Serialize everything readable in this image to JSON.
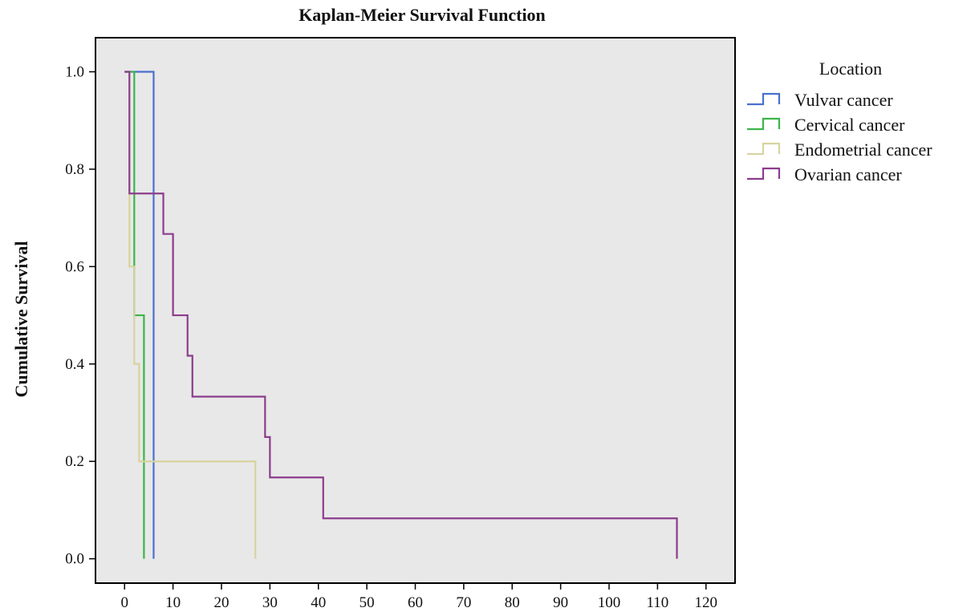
{
  "chart_data": {
    "type": "line",
    "title": "Kaplan-Meier Survival Function",
    "xlabel": "",
    "ylabel": "Cumulative Survival",
    "xlim": [
      -6,
      126
    ],
    "ylim": [
      -0.05,
      1.07
    ],
    "xticks": [
      0,
      10,
      20,
      30,
      40,
      50,
      60,
      70,
      80,
      90,
      100,
      110,
      120
    ],
    "xtick_labels": [
      "0",
      "10",
      "20",
      "30",
      "40",
      "50",
      "60",
      "70",
      "80",
      "90",
      "100",
      "110",
      "120"
    ],
    "yticks": [
      0.0,
      0.2,
      0.4,
      0.6,
      0.8,
      1.0
    ],
    "ytick_labels": [
      "0.0",
      "0.2",
      "0.4",
      "0.6",
      "0.8",
      "1.0"
    ],
    "grid": false,
    "legend_title": "Location",
    "legend_position": "right",
    "plot_background": "#e8e8e8",
    "series": [
      {
        "name": "Vulvar cancer",
        "color": "#4a6fcf",
        "steps": [
          [
            0,
            1.0
          ],
          [
            6,
            0.0
          ]
        ]
      },
      {
        "name": "Cervical cancer",
        "color": "#3cb54a",
        "steps": [
          [
            0,
            1.0
          ],
          [
            2,
            0.5
          ],
          [
            4,
            0.0
          ]
        ]
      },
      {
        "name": "Endometrial cancer",
        "color": "#d8d3a0",
        "steps": [
          [
            0,
            1.0
          ],
          [
            1,
            0.6
          ],
          [
            2,
            0.4
          ],
          [
            3,
            0.2
          ],
          [
            27,
            0.0
          ]
        ]
      },
      {
        "name": "Ovarian cancer",
        "color": "#8c3c8c",
        "steps": [
          [
            0,
            1.0
          ],
          [
            1,
            0.75
          ],
          [
            8,
            0.667
          ],
          [
            10,
            0.5
          ],
          [
            13,
            0.417
          ],
          [
            14,
            0.333
          ],
          [
            29,
            0.25
          ],
          [
            30,
            0.167
          ],
          [
            41,
            0.083
          ],
          [
            114,
            0.0
          ]
        ]
      }
    ]
  }
}
